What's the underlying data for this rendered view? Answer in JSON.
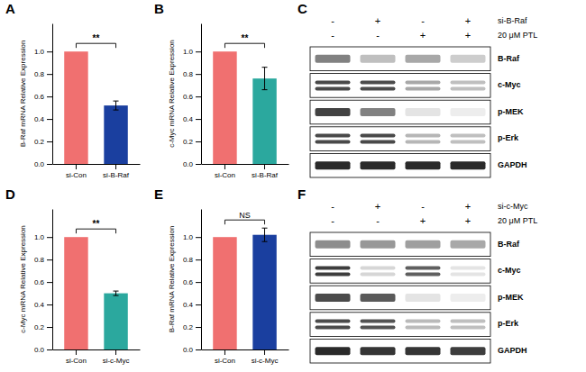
{
  "chart_data": [
    {
      "type": "bar",
      "title": "A",
      "categories": [
        "si-Con",
        "si-B-Raf"
      ],
      "values": [
        1.0,
        0.52
      ],
      "errors": [
        0.0,
        0.04
      ],
      "colors": [
        "#F07070",
        "#1A3F9F"
      ],
      "ylabel": "B-Raf mRNA Relative Expression",
      "ylim": [
        0,
        1.25
      ],
      "yticks": [
        {
          "value": 0.0,
          "label": "0.0"
        },
        0.2,
        0.4,
        0.6,
        0.8,
        {
          "value": 1.0,
          "label": "1.0"
        }
      ],
      "annotations": [
        {
          "text": "**"
        }
      ]
    },
    {
      "type": "bar",
      "title": "B",
      "categories": [
        "si-Con",
        "si-B-Raf"
      ],
      "values": [
        1.0,
        0.76
      ],
      "errors": [
        0.0,
        0.1
      ],
      "colors": [
        "#F07070",
        "#2BA89E"
      ],
      "ylabel": "c-Myc mRNA Relative Expression",
      "ylim": [
        0,
        1.25
      ],
      "yticks": [
        {
          "value": 0.0,
          "label": "0.0"
        },
        0.2,
        0.4,
        0.6,
        0.8,
        {
          "value": 1.0,
          "label": "1.0"
        }
      ],
      "annotations": [
        {
          "text": "**"
        }
      ]
    },
    {
      "type": "blot",
      "title": "C",
      "conditions": [
        [
          "-",
          "+",
          "-",
          "+"
        ],
        [
          "-",
          "-",
          "+",
          "+"
        ]
      ],
      "row_labels": [
        "si-B-Raf",
        "20 μM PTL"
      ],
      "bands": [
        {
          "name": "B-Raf",
          "intensities": [
            0.55,
            0.28,
            0.38,
            0.22
          ],
          "n_lines": 1
        },
        {
          "name": "c-Myc",
          "intensities": [
            0.8,
            0.78,
            0.38,
            0.28
          ],
          "n_lines": 2
        },
        {
          "name": "p-MEK",
          "intensities": [
            0.82,
            0.55,
            0.12,
            0.08
          ],
          "n_lines": 1
        },
        {
          "name": "p-Erk",
          "intensities": [
            0.8,
            0.8,
            0.32,
            0.28
          ],
          "n_lines": 2
        },
        {
          "name": "GAPDH",
          "intensities": [
            0.92,
            0.92,
            0.92,
            0.92
          ],
          "n_lines": 1
        }
      ]
    },
    {
      "type": "bar",
      "title": "D",
      "categories": [
        "si-Con",
        "si-c-Myc"
      ],
      "values": [
        1.0,
        0.5
      ],
      "errors": [
        0.0,
        0.02
      ],
      "colors": [
        "#F07070",
        "#2BA89E"
      ],
      "ylabel": "c-Myc mRNA Relative Expression",
      "ylim": [
        0,
        1.25
      ],
      "yticks": [
        {
          "value": 0.0,
          "label": "0.0"
        },
        0.2,
        0.4,
        0.6,
        0.8,
        {
          "value": 1.0,
          "label": "1.0"
        }
      ],
      "annotations": [
        {
          "text": "**"
        }
      ]
    },
    {
      "type": "bar",
      "title": "E",
      "categories": [
        "si-Con",
        "si-c-Myc"
      ],
      "values": [
        1.0,
        1.02
      ],
      "errors": [
        0.0,
        0.06
      ],
      "colors": [
        "#F07070",
        "#1A3F9F"
      ],
      "ylabel": "B-Raf mRNA Relative Expression",
      "ylim": [
        0,
        1.25
      ],
      "yticks": [
        {
          "value": 0.0,
          "label": "0.0"
        },
        0.2,
        0.4,
        0.6,
        0.8,
        {
          "value": 1.0,
          "label": "1.0"
        }
      ],
      "annotations": [
        {
          "text": "NS"
        }
      ]
    },
    {
      "type": "blot",
      "title": "F",
      "conditions": [
        [
          "-",
          "+",
          "-",
          "+"
        ],
        [
          "-",
          "-",
          "+",
          "+"
        ]
      ],
      "row_labels": [
        "si-c-Myc",
        "20 μM PTL"
      ],
      "bands": [
        {
          "name": "B-Raf",
          "intensities": [
            0.5,
            0.45,
            0.42,
            0.38
          ],
          "n_lines": 1
        },
        {
          "name": "c-Myc",
          "intensities": [
            0.85,
            0.18,
            0.7,
            0.12
          ],
          "n_lines": 2
        },
        {
          "name": "p-MEK",
          "intensities": [
            0.78,
            0.72,
            0.12,
            0.08
          ],
          "n_lines": 1
        },
        {
          "name": "p-Erk",
          "intensities": [
            0.78,
            0.75,
            0.3,
            0.28
          ],
          "n_lines": 2
        },
        {
          "name": "GAPDH",
          "intensities": [
            0.92,
            0.88,
            0.88,
            0.85
          ],
          "n_lines": 1
        }
      ]
    }
  ]
}
